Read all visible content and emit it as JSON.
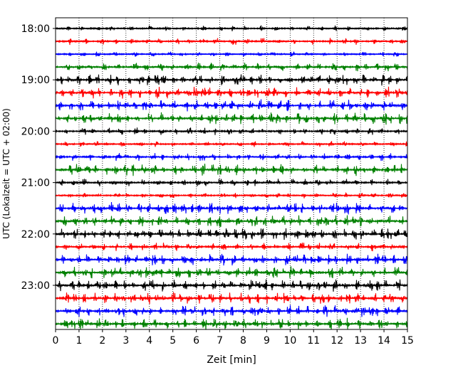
{
  "chart_data": {
    "type": "line",
    "title": "",
    "xlabel": "Zeit  [min]",
    "ylabel": "UTC (Lokalzeit = UTC + 02:00)",
    "xlim": [
      0,
      15
    ],
    "xticks": [
      "0",
      "1",
      "2",
      "3",
      "4",
      "5",
      "6",
      "7",
      "8",
      "9",
      "10",
      "11",
      "12",
      "13",
      "14",
      "15"
    ],
    "yticks": [
      "18:00",
      "19:00",
      "20:00",
      "21:00",
      "22:00",
      "23:00"
    ],
    "grid": "vertical dotted",
    "series_colors": [
      "#000000",
      "#ff0000",
      "#0000ff",
      "#008000"
    ],
    "traces": [
      {
        "start": "18:00",
        "color": "#000000",
        "activity": 0.2
      },
      {
        "start": "18:15",
        "color": "#ff0000",
        "activity": 0.3
      },
      {
        "start": "18:30",
        "color": "#0000ff",
        "activity": 0.15
      },
      {
        "start": "18:45",
        "color": "#008000",
        "activity": 0.5
      },
      {
        "start": "19:00",
        "color": "#000000",
        "activity": 0.8
      },
      {
        "start": "19:15",
        "color": "#ff0000",
        "activity": 0.8
      },
      {
        "start": "19:30",
        "color": "#0000ff",
        "activity": 0.8
      },
      {
        "start": "19:45",
        "color": "#008000",
        "activity": 0.8
      },
      {
        "start": "20:00",
        "color": "#000000",
        "activity": 0.4
      },
      {
        "start": "20:15",
        "color": "#ff0000",
        "activity": 0.2
      },
      {
        "start": "20:30",
        "color": "#0000ff",
        "activity": 0.4
      },
      {
        "start": "20:45",
        "color": "#008000",
        "activity": 0.8
      },
      {
        "start": "21:00",
        "color": "#000000",
        "activity": 0.4
      },
      {
        "start": "21:15",
        "color": "#ff0000",
        "activity": 0.2
      },
      {
        "start": "21:30",
        "color": "#0000ff",
        "activity": 0.8
      },
      {
        "start": "21:45",
        "color": "#008000",
        "activity": 0.8
      },
      {
        "start": "22:00",
        "color": "#000000",
        "activity": 0.8
      },
      {
        "start": "22:15",
        "color": "#ff0000",
        "activity": 0.5
      },
      {
        "start": "22:30",
        "color": "#0000ff",
        "activity": 0.8
      },
      {
        "start": "22:45",
        "color": "#008000",
        "activity": 0.8
      },
      {
        "start": "23:00",
        "color": "#000000",
        "activity": 0.8
      },
      {
        "start": "23:15",
        "color": "#ff0000",
        "activity": 0.8
      },
      {
        "start": "23:30",
        "color": "#0000ff",
        "activity": 0.8
      },
      {
        "start": "23:45",
        "color": "#008000",
        "activity": 0.8
      }
    ]
  }
}
